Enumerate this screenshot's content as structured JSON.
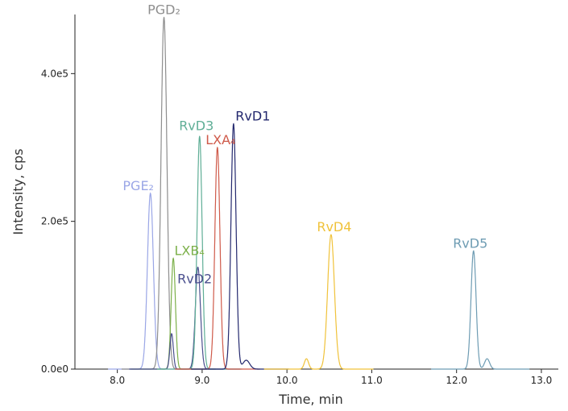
{
  "chart_data": {
    "type": "line",
    "title": "",
    "xlabel": "Time, min",
    "ylabel": "Intensity, cps",
    "xlim": [
      7.5,
      13.2
    ],
    "ylim": [
      0,
      480000
    ],
    "x_ticks": [
      {
        "value": 8.0,
        "label": "8.0"
      },
      {
        "value": 9.0,
        "label": "9.0"
      },
      {
        "value": 10.0,
        "label": "10.0"
      },
      {
        "value": 11.0,
        "label": "11.0"
      },
      {
        "value": 12.0,
        "label": "12.0"
      },
      {
        "value": 13.0,
        "label": "13.0"
      }
    ],
    "y_ticks": [
      {
        "value": 0,
        "label": "0.0e0"
      },
      {
        "value": 200000,
        "label": "2.0e5"
      },
      {
        "value": 400000,
        "label": "4.0e5"
      }
    ],
    "grid": false,
    "legend": "none",
    "series": [
      {
        "name": "PGE₂",
        "color": "#9aa6e6",
        "peaks": [
          {
            "rt": 8.39,
            "height": 238000,
            "width": 0.035
          }
        ]
      },
      {
        "name": "PGD₂",
        "color": "#8e8e8e",
        "peaks": [
          {
            "rt": 8.55,
            "height": 476000,
            "width": 0.035
          }
        ]
      },
      {
        "name": "LXB₄",
        "color": "#7cb04a",
        "peaks": [
          {
            "rt": 8.66,
            "height": 150000,
            "width": 0.025
          }
        ]
      },
      {
        "name": "RvD2",
        "color": "#4a4f8e",
        "peaks": [
          {
            "rt": 8.64,
            "height": 48000,
            "width": 0.02
          },
          {
            "rt": 8.95,
            "height": 138000,
            "width": 0.03
          }
        ]
      },
      {
        "name": "RvD3",
        "color": "#5fae96",
        "peaks": [
          {
            "rt": 8.97,
            "height": 315000,
            "width": 0.03
          }
        ]
      },
      {
        "name": "LXA₄",
        "color": "#cf5a4a",
        "peaks": [
          {
            "rt": 9.18,
            "height": 300000,
            "width": 0.03
          }
        ]
      },
      {
        "name": "RvD1",
        "color": "#23286e",
        "peaks": [
          {
            "rt": 9.37,
            "height": 332000,
            "width": 0.03
          },
          {
            "rt": 9.52,
            "height": 12000,
            "width": 0.04
          }
        ]
      },
      {
        "name": "RvD4",
        "color": "#f0c23a",
        "peaks": [
          {
            "rt": 10.23,
            "height": 14000,
            "width": 0.025
          },
          {
            "rt": 10.52,
            "height": 182000,
            "width": 0.04
          }
        ]
      },
      {
        "name": "RvD5",
        "color": "#6e9cb3",
        "peaks": [
          {
            "rt": 12.2,
            "height": 160000,
            "width": 0.03
          },
          {
            "rt": 12.36,
            "height": 14000,
            "width": 0.03
          }
        ]
      }
    ],
    "peak_labels": [
      {
        "text": "PGD₂",
        "series": "PGD₂",
        "rt": 8.55,
        "y": 476000
      },
      {
        "text": "PGE₂",
        "series": "PGE₂",
        "rt": 8.39,
        "y": 238000
      },
      {
        "text": "RvD3",
        "series": "RvD3",
        "rt": 8.97,
        "y": 315000
      },
      {
        "text": "LXA₄",
        "series": "LXA₄",
        "rt": 9.18,
        "y": 300000
      },
      {
        "text": "RvD1",
        "series": "RvD1",
        "rt": 9.37,
        "y": 332000
      },
      {
        "text": "LXB₄",
        "series": "LXB₄",
        "rt": 8.66,
        "y": 150000
      },
      {
        "text": "RvD2",
        "series": "RvD2",
        "rt": 8.95,
        "y": 138000
      },
      {
        "text": "RvD4",
        "series": "RvD4",
        "rt": 10.52,
        "y": 182000
      },
      {
        "text": "RvD5",
        "series": "RvD5",
        "rt": 12.2,
        "y": 160000
      }
    ]
  }
}
